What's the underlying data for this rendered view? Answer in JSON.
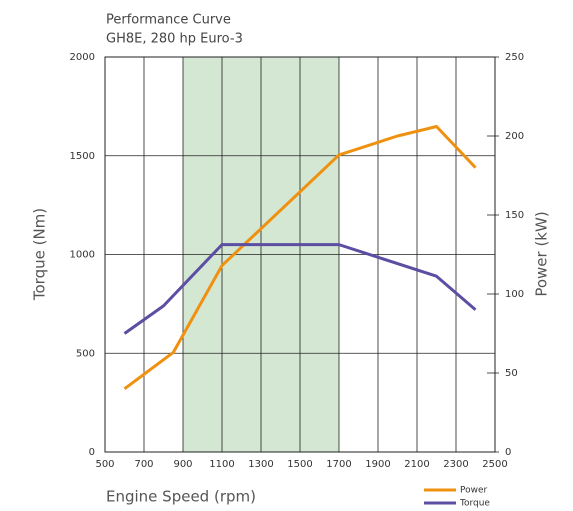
{
  "chart_data": {
    "type": "line",
    "title": [
      "Performance Curve",
      "GH8E, 280 hp Euro-3"
    ],
    "xlabel": "Engine Speed (rpm)",
    "ylabel": "Torque (Nm)",
    "y2label": "Power (kW)",
    "xlim": [
      500,
      2500
    ],
    "xticks": [
      500,
      700,
      900,
      1100,
      1300,
      1500,
      1700,
      1900,
      2100,
      2300,
      2500
    ],
    "ylim": [
      0,
      2000
    ],
    "yticks": [
      0,
      500,
      1000,
      1500,
      2000
    ],
    "y2lim": [
      0,
      250
    ],
    "y2ticks": [
      0,
      50,
      100,
      150,
      200,
      250
    ],
    "grid": true,
    "shaded_range": {
      "x": [
        900,
        1700
      ],
      "color": "#d3e7d3"
    },
    "legend": "bottom-right",
    "series": [
      {
        "name": "Power",
        "color": "#f0900f",
        "axis": "y2",
        "x": [
          600,
          850,
          1100,
          1700,
          2000,
          2200,
          2400
        ],
        "values": [
          40,
          63,
          118,
          188,
          200,
          206,
          180
        ]
      },
      {
        "name": "Torque",
        "color": "#5b4ea3",
        "x": [
          600,
          800,
          1100,
          1700,
          2200,
          2400
        ],
        "values": [
          600,
          740,
          1050,
          1050,
          890,
          720
        ]
      }
    ]
  }
}
